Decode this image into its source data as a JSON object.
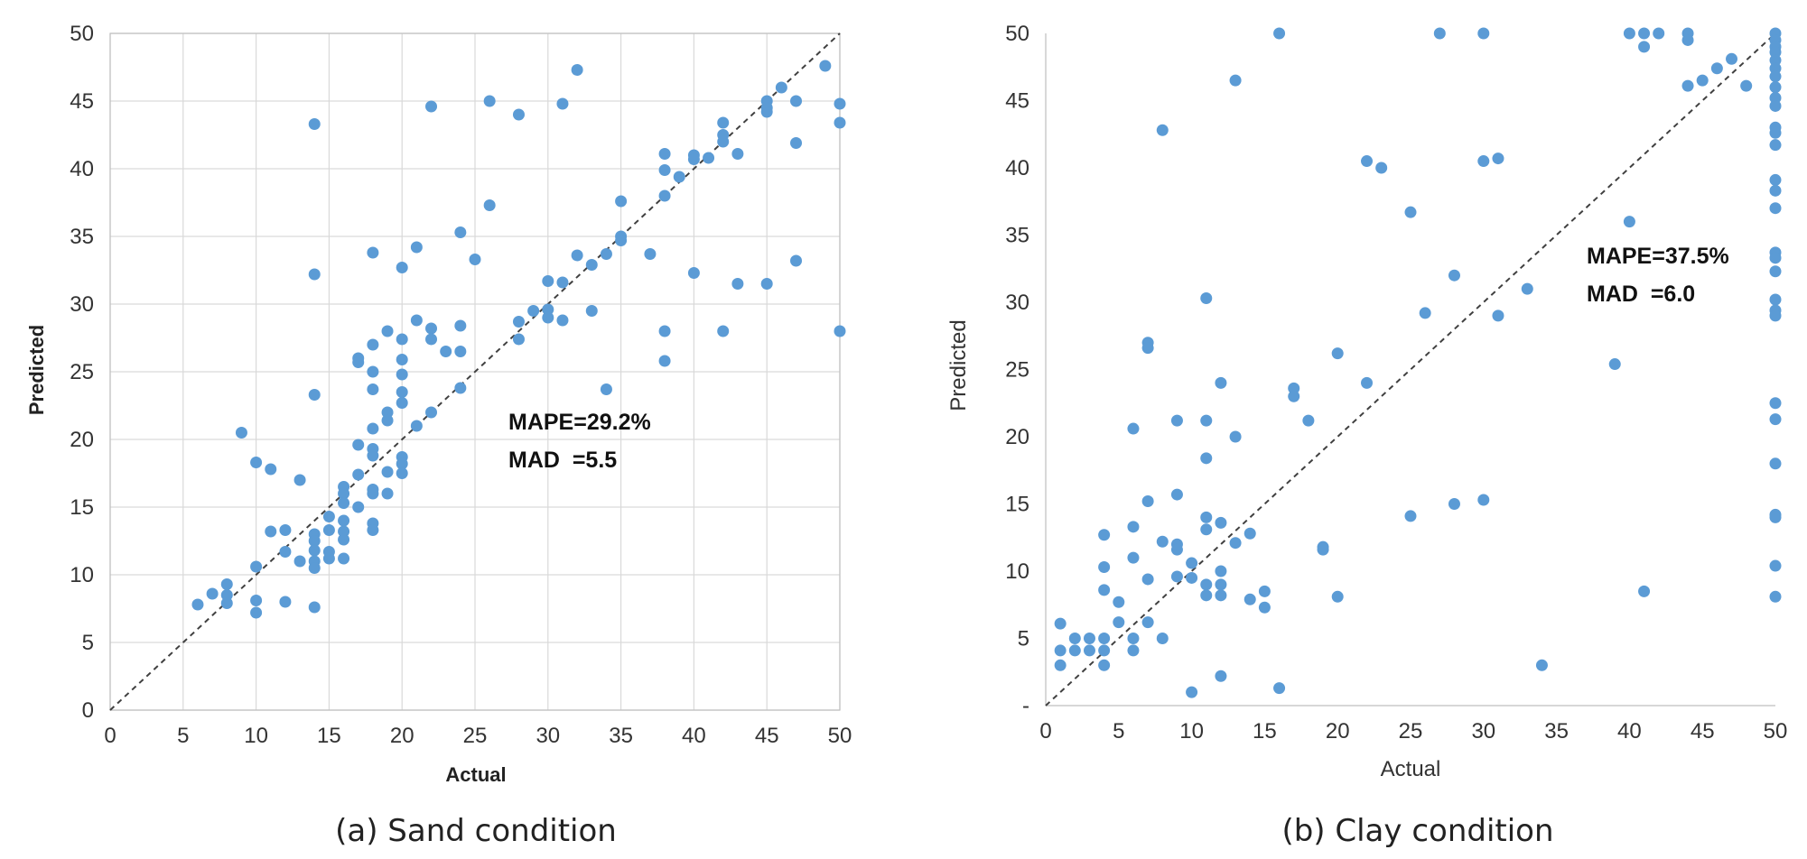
{
  "chart_data": [
    {
      "type": "scatter",
      "caption": "(a) Sand condition",
      "xlabel": "Actual",
      "ylabel": "Predicted",
      "xlim": [
        0,
        50
      ],
      "ylim": [
        0,
        50
      ],
      "xticks": [
        "0",
        "5",
        "10",
        "15",
        "20",
        "25",
        "30",
        "35",
        "40",
        "45",
        "50"
      ],
      "yticks": [
        "0",
        "5",
        "10",
        "15",
        "20",
        "25",
        "30",
        "35",
        "40",
        "45",
        "50"
      ],
      "grid": true,
      "reference_line": "y = x (dashed)",
      "annotations": [
        "MAPE=29.2%",
        "MAD  =5.5"
      ],
      "points": [
        [
          6,
          7.8
        ],
        [
          7,
          8.6
        ],
        [
          8,
          7.9
        ],
        [
          8,
          8.5
        ],
        [
          8,
          9.3
        ],
        [
          9,
          20.5
        ],
        [
          10,
          18.3
        ],
        [
          10,
          10.6
        ],
        [
          10,
          8.1
        ],
        [
          10,
          7.2
        ],
        [
          11,
          17.8
        ],
        [
          11,
          13.2
        ],
        [
          12,
          13.3
        ],
        [
          12,
          11.7
        ],
        [
          12,
          8
        ],
        [
          13,
          17
        ],
        [
          13,
          11
        ],
        [
          14,
          43.3
        ],
        [
          14,
          32.2
        ],
        [
          14,
          23.3
        ],
        [
          14,
          13
        ],
        [
          14,
          12.5
        ],
        [
          14,
          11.8
        ],
        [
          14,
          11
        ],
        [
          14,
          10.5
        ],
        [
          14,
          7.6
        ],
        [
          15,
          14.3
        ],
        [
          15,
          13.3
        ],
        [
          15,
          11.7
        ],
        [
          15,
          11.2
        ],
        [
          16,
          16.5
        ],
        [
          16,
          16
        ],
        [
          16,
          15.3
        ],
        [
          16,
          14
        ],
        [
          16,
          13.2
        ],
        [
          16,
          12.6
        ],
        [
          16,
          11.2
        ],
        [
          17,
          26
        ],
        [
          17,
          25.7
        ],
        [
          17,
          19.6
        ],
        [
          17,
          17.4
        ],
        [
          17,
          15
        ],
        [
          18,
          33.8
        ],
        [
          18,
          27
        ],
        [
          18,
          25
        ],
        [
          18,
          23.7
        ],
        [
          18,
          20.8
        ],
        [
          18,
          19.3
        ],
        [
          18,
          18.8
        ],
        [
          18,
          16.3
        ],
        [
          18,
          16
        ],
        [
          18,
          13.8
        ],
        [
          18,
          13.3
        ],
        [
          19,
          28
        ],
        [
          19,
          22
        ],
        [
          19,
          21.4
        ],
        [
          19,
          17.6
        ],
        [
          19,
          16
        ],
        [
          20,
          32.7
        ],
        [
          20,
          27.4
        ],
        [
          20,
          25.9
        ],
        [
          20,
          24.8
        ],
        [
          20,
          23.5
        ],
        [
          20,
          22.7
        ],
        [
          20,
          18.7
        ],
        [
          20,
          18.2
        ],
        [
          20,
          17.5
        ],
        [
          21,
          34.2
        ],
        [
          21,
          28.8
        ],
        [
          21,
          21
        ],
        [
          22,
          44.6
        ],
        [
          22,
          28.2
        ],
        [
          22,
          27.4
        ],
        [
          22,
          22
        ],
        [
          23,
          26.5
        ],
        [
          24,
          35.3
        ],
        [
          24,
          28.4
        ],
        [
          24,
          26.5
        ],
        [
          24,
          23.8
        ],
        [
          25,
          33.3
        ],
        [
          26,
          45
        ],
        [
          26,
          37.3
        ],
        [
          28,
          44
        ],
        [
          28,
          28.7
        ],
        [
          28,
          27.4
        ],
        [
          29,
          29.5
        ],
        [
          30,
          31.7
        ],
        [
          30,
          29.6
        ],
        [
          30,
          29
        ],
        [
          31,
          44.8
        ],
        [
          31,
          31.6
        ],
        [
          31,
          28.8
        ],
        [
          32,
          47.3
        ],
        [
          32,
          33.6
        ],
        [
          33,
          32.9
        ],
        [
          33,
          29.5
        ],
        [
          34,
          33.7
        ],
        [
          34,
          23.7
        ],
        [
          35,
          37.6
        ],
        [
          35,
          35
        ],
        [
          35,
          34.7
        ],
        [
          37,
          33.7
        ],
        [
          38,
          41.1
        ],
        [
          38,
          39.9
        ],
        [
          38,
          38
        ],
        [
          38,
          28
        ],
        [
          38,
          25.8
        ],
        [
          39,
          39.4
        ],
        [
          40,
          41
        ],
        [
          40,
          40.7
        ],
        [
          40,
          32.3
        ],
        [
          41,
          40.8
        ],
        [
          42,
          43.4
        ],
        [
          42,
          42.5
        ],
        [
          42,
          42
        ],
        [
          42,
          28
        ],
        [
          43,
          41.1
        ],
        [
          43,
          31.5
        ],
        [
          45,
          45
        ],
        [
          45,
          44.5
        ],
        [
          45,
          44.2
        ],
        [
          45,
          31.5
        ],
        [
          46,
          46
        ],
        [
          47,
          45
        ],
        [
          47,
          41.9
        ],
        [
          47,
          33.2
        ],
        [
          49,
          47.6
        ],
        [
          50,
          44.8
        ],
        [
          50,
          43.4
        ],
        [
          50,
          28
        ]
      ]
    },
    {
      "type": "scatter",
      "caption": "(b) Clay condition",
      "xlabel": "Actual",
      "ylabel": "Predicted",
      "xlim": [
        0,
        50
      ],
      "ylim": [
        0,
        50
      ],
      "xticks": [
        "0",
        "5",
        "10",
        "15",
        "20",
        "25",
        "30",
        "35",
        "40",
        "45",
        "50"
      ],
      "yticks": [
        "-",
        "5",
        "10",
        "15",
        "20",
        "25",
        "30",
        "35",
        "40",
        "45",
        "50"
      ],
      "grid": false,
      "reference_line": "y = x (dashed)",
      "annotations": [
        "MAPE=37.5%",
        "MAD  =6.0"
      ],
      "points": [
        [
          1,
          6.1
        ],
        [
          1,
          4.1
        ],
        [
          1,
          3
        ],
        [
          2,
          5
        ],
        [
          2,
          4.1
        ],
        [
          3,
          5
        ],
        [
          3,
          4.1
        ],
        [
          4,
          12.7
        ],
        [
          4,
          10.3
        ],
        [
          4,
          8.6
        ],
        [
          4,
          5
        ],
        [
          4,
          4.1
        ],
        [
          4,
          3
        ],
        [
          5,
          7.7
        ],
        [
          5,
          6.2
        ],
        [
          6,
          20.6
        ],
        [
          6,
          13.3
        ],
        [
          6,
          11
        ],
        [
          6,
          5
        ],
        [
          6,
          4.1
        ],
        [
          7,
          27
        ],
        [
          7,
          26.6
        ],
        [
          7,
          15.2
        ],
        [
          7,
          9.4
        ],
        [
          7,
          6.2
        ],
        [
          8,
          42.8
        ],
        [
          8,
          12.2
        ],
        [
          8,
          5
        ],
        [
          9,
          21.2
        ],
        [
          9,
          15.7
        ],
        [
          9,
          12
        ],
        [
          9,
          11.6
        ],
        [
          9,
          9.6
        ],
        [
          10,
          10.6
        ],
        [
          10,
          9.5
        ],
        [
          10,
          1
        ],
        [
          11,
          30.3
        ],
        [
          11,
          21.2
        ],
        [
          11,
          18.4
        ],
        [
          11,
          14
        ],
        [
          11,
          13.1
        ],
        [
          11,
          9
        ],
        [
          11,
          8.2
        ],
        [
          12,
          24
        ],
        [
          12,
          13.6
        ],
        [
          12,
          10
        ],
        [
          12,
          9
        ],
        [
          12,
          8.2
        ],
        [
          12,
          2.2
        ],
        [
          13,
          46.5
        ],
        [
          13,
          20
        ],
        [
          13,
          12.1
        ],
        [
          14,
          12.8
        ],
        [
          14,
          7.9
        ],
        [
          15,
          8.5
        ],
        [
          15,
          7.3
        ],
        [
          16,
          50
        ],
        [
          16,
          1.3
        ],
        [
          17,
          23.6
        ],
        [
          17,
          23
        ],
        [
          18,
          21.2
        ],
        [
          19,
          11.8
        ],
        [
          19,
          11.6
        ],
        [
          20,
          26.2
        ],
        [
          20,
          8.1
        ],
        [
          22,
          40.5
        ],
        [
          22,
          24
        ],
        [
          23,
          40
        ],
        [
          25,
          36.7
        ],
        [
          25,
          14.1
        ],
        [
          26,
          29.2
        ],
        [
          27,
          50
        ],
        [
          28,
          32
        ],
        [
          28,
          15
        ],
        [
          30,
          50
        ],
        [
          30,
          40.5
        ],
        [
          30,
          15.3
        ],
        [
          31,
          40.7
        ],
        [
          31,
          29
        ],
        [
          33,
          31
        ],
        [
          34,
          3
        ],
        [
          39,
          25.4
        ],
        [
          40,
          50
        ],
        [
          40,
          36
        ],
        [
          41,
          50
        ],
        [
          41,
          49
        ],
        [
          41,
          8.5
        ],
        [
          42,
          50
        ],
        [
          44,
          50
        ],
        [
          44,
          49.5
        ],
        [
          44,
          46.1
        ],
        [
          45,
          46.5
        ],
        [
          46,
          47.4
        ],
        [
          47,
          48.1
        ],
        [
          48,
          46.1
        ],
        [
          50,
          50
        ],
        [
          50,
          49.5
        ],
        [
          50,
          49
        ],
        [
          50,
          48.6
        ],
        [
          50,
          48
        ],
        [
          50,
          47.4
        ],
        [
          50,
          46.8
        ],
        [
          50,
          46
        ],
        [
          50,
          45.2
        ],
        [
          50,
          44.6
        ],
        [
          50,
          43
        ],
        [
          50,
          42.6
        ],
        [
          50,
          41.7
        ],
        [
          50,
          39.1
        ],
        [
          50,
          38.3
        ],
        [
          50,
          37
        ],
        [
          50,
          33.7
        ],
        [
          50,
          33.3
        ],
        [
          50,
          32.3
        ],
        [
          50,
          30.2
        ],
        [
          50,
          29.4
        ],
        [
          50,
          29
        ],
        [
          50,
          22.5
        ],
        [
          50,
          21.3
        ],
        [
          50,
          18
        ],
        [
          50,
          14.2
        ],
        [
          50,
          14
        ],
        [
          50,
          10.4
        ],
        [
          50,
          8.1
        ]
      ]
    }
  ]
}
